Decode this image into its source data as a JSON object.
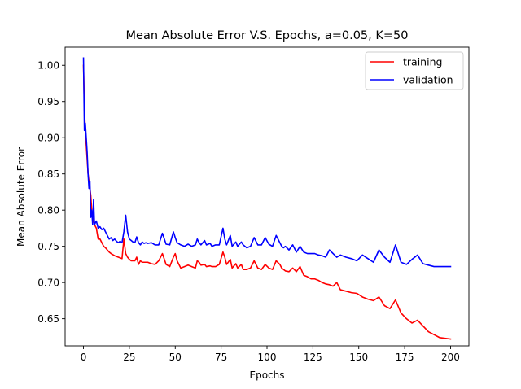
{
  "chart_data": {
    "type": "line",
    "title": "Mean Absolute Error V.S. Epochs, a=0.05, K=50",
    "xlabel": "Epochs",
    "ylabel": "Mean Absolute Error",
    "xlim": [
      -10,
      210
    ],
    "ylim": [
      0.6125,
      1.025
    ],
    "xticks": [
      0,
      25,
      50,
      75,
      100,
      125,
      150,
      175,
      200
    ],
    "yticks": [
      0.65,
      0.7,
      0.75,
      0.8,
      0.85,
      0.9,
      0.95,
      1.0
    ],
    "ytick_labels": [
      "0.65",
      "0.70",
      "0.75",
      "0.80",
      "0.85",
      "0.90",
      "0.95",
      "1.00"
    ],
    "grid": false,
    "legend": "top-right",
    "series": [
      {
        "name": "training",
        "color": "#ff0000",
        "x": [
          0,
          0.5,
          1,
          1.5,
          2,
          2.5,
          3,
          3.5,
          4,
          4.5,
          5,
          6,
          7,
          8,
          9,
          10,
          11,
          12,
          13,
          14,
          15,
          17,
          19,
          21,
          22,
          23,
          24,
          25,
          26,
          28,
          29,
          30,
          31,
          32,
          33,
          35,
          37,
          39,
          41,
          43,
          45,
          47,
          49,
          50,
          51,
          53,
          55,
          57,
          59,
          61,
          62,
          63,
          64,
          66,
          67,
          69,
          70,
          72,
          74,
          76,
          77,
          78,
          80,
          81,
          83,
          84,
          86,
          87,
          89,
          91,
          93,
          95,
          97,
          99,
          101,
          103,
          105,
          107,
          108,
          109,
          110,
          112,
          114,
          116,
          118,
          120,
          122,
          124,
          126,
          128,
          130,
          132,
          134,
          136,
          138,
          140,
          143,
          146,
          149,
          152,
          155,
          158,
          161,
          164,
          167,
          170,
          173,
          176,
          179,
          182,
          185,
          188,
          191,
          194,
          197,
          200
        ],
        "values": [
          1.0,
          0.94,
          0.91,
          0.89,
          0.87,
          0.85,
          0.84,
          0.83,
          0.82,
          0.8,
          0.79,
          0.78,
          0.775,
          0.76,
          0.76,
          0.755,
          0.75,
          0.748,
          0.745,
          0.742,
          0.74,
          0.737,
          0.735,
          0.733,
          0.76,
          0.74,
          0.735,
          0.732,
          0.73,
          0.73,
          0.735,
          0.725,
          0.73,
          0.728,
          0.728,
          0.728,
          0.726,
          0.725,
          0.73,
          0.74,
          0.725,
          0.722,
          0.735,
          0.74,
          0.73,
          0.72,
          0.722,
          0.724,
          0.722,
          0.72,
          0.73,
          0.728,
          0.724,
          0.725,
          0.722,
          0.723,
          0.722,
          0.722,
          0.725,
          0.742,
          0.735,
          0.725,
          0.732,
          0.72,
          0.726,
          0.72,
          0.725,
          0.718,
          0.718,
          0.72,
          0.73,
          0.72,
          0.718,
          0.725,
          0.72,
          0.718,
          0.73,
          0.725,
          0.72,
          0.718,
          0.716,
          0.715,
          0.72,
          0.715,
          0.722,
          0.71,
          0.708,
          0.705,
          0.705,
          0.703,
          0.7,
          0.698,
          0.697,
          0.695,
          0.7,
          0.69,
          0.688,
          0.686,
          0.685,
          0.68,
          0.677,
          0.675,
          0.68,
          0.668,
          0.664,
          0.676,
          0.658,
          0.65,
          0.644,
          0.648,
          0.64,
          0.632,
          0.628,
          0.624,
          0.623,
          0.622
        ]
      },
      {
        "name": "validation",
        "color": "#0000ff",
        "x": [
          0,
          0.5,
          1,
          1.5,
          2,
          2.5,
          3,
          3.5,
          4,
          4.5,
          5,
          5.5,
          6,
          7,
          8,
          9,
          10,
          11,
          12,
          13,
          14,
          15,
          16,
          17,
          18,
          19,
          20,
          21,
          22,
          23,
          24,
          25,
          26,
          27,
          28,
          29,
          30,
          31,
          32,
          33,
          34,
          35,
          37,
          39,
          41,
          43,
          45,
          47,
          49,
          50,
          51,
          53,
          55,
          57,
          59,
          61,
          62,
          63,
          64,
          66,
          67,
          69,
          70,
          72,
          74,
          76,
          77,
          78,
          80,
          81,
          83,
          84,
          86,
          87,
          89,
          91,
          93,
          95,
          97,
          99,
          101,
          103,
          105,
          107,
          108,
          109,
          110,
          112,
          114,
          116,
          118,
          120,
          122,
          124,
          126,
          128,
          130,
          132,
          134,
          136,
          138,
          140,
          143,
          146,
          149,
          152,
          155,
          158,
          161,
          164,
          167,
          170,
          173,
          176,
          179,
          182,
          185,
          188,
          191,
          194,
          197,
          200
        ],
        "values": [
          1.01,
          0.91,
          0.92,
          0.9,
          0.88,
          0.85,
          0.83,
          0.84,
          0.79,
          0.8,
          0.78,
          0.815,
          0.78,
          0.785,
          0.775,
          0.777,
          0.773,
          0.775,
          0.77,
          0.765,
          0.76,
          0.762,
          0.758,
          0.76,
          0.757,
          0.755,
          0.757,
          0.755,
          0.77,
          0.793,
          0.77,
          0.76,
          0.758,
          0.756,
          0.755,
          0.763,
          0.755,
          0.752,
          0.756,
          0.754,
          0.755,
          0.754,
          0.755,
          0.752,
          0.752,
          0.768,
          0.753,
          0.752,
          0.77,
          0.762,
          0.755,
          0.752,
          0.75,
          0.753,
          0.75,
          0.752,
          0.76,
          0.755,
          0.752,
          0.758,
          0.752,
          0.754,
          0.75,
          0.752,
          0.752,
          0.775,
          0.76,
          0.752,
          0.765,
          0.75,
          0.756,
          0.75,
          0.756,
          0.752,
          0.748,
          0.75,
          0.762,
          0.752,
          0.752,
          0.762,
          0.753,
          0.75,
          0.765,
          0.755,
          0.75,
          0.748,
          0.75,
          0.745,
          0.752,
          0.742,
          0.75,
          0.742,
          0.74,
          0.74,
          0.74,
          0.738,
          0.737,
          0.735,
          0.745,
          0.74,
          0.735,
          0.738,
          0.735,
          0.733,
          0.73,
          0.738,
          0.733,
          0.728,
          0.745,
          0.735,
          0.728,
          0.752,
          0.728,
          0.725,
          0.732,
          0.738,
          0.726,
          0.724,
          0.722,
          0.722,
          0.722,
          0.722
        ]
      }
    ]
  }
}
